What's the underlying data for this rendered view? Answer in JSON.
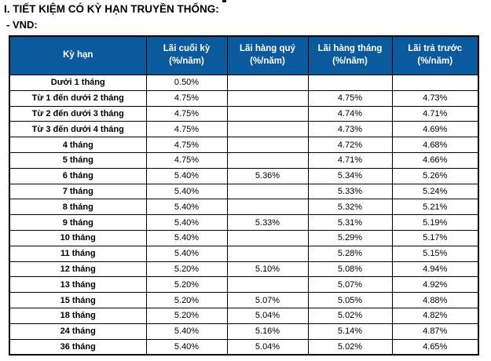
{
  "page": {
    "section_title": "I. TIẾT KIỆM CÓ KỲ HẠN TRUYỀN THỐNG:",
    "currency_label": "- VND:"
  },
  "colors": {
    "header_bg": "#0b5a9e",
    "header_text": "#ffffff",
    "border": "#000000",
    "body_text": "#000000"
  },
  "table": {
    "columns": [
      {
        "label": "Kỳ hạn",
        "sub": ""
      },
      {
        "label": "Lãi cuối kỳ",
        "sub": "(%/năm)"
      },
      {
        "label": "Lãi hàng quý",
        "sub": "(%/năm)"
      },
      {
        "label": "Lãi hàng tháng",
        "sub": "(%/năm)"
      },
      {
        "label": "Lãi trả trước",
        "sub": "(%/năm)"
      }
    ],
    "rows": [
      {
        "term": "Dưới 1 tháng",
        "end": "0.50%",
        "quarterly": "",
        "monthly": "",
        "prepaid": ""
      },
      {
        "term": "Từ 1 đến dưới 2 tháng",
        "end": "4.75%",
        "quarterly": "",
        "monthly": "4.75%",
        "prepaid": "4.73%"
      },
      {
        "term": "Từ 2 đến dưới 3 tháng",
        "end": "4.75%",
        "quarterly": "",
        "monthly": "4.74%",
        "prepaid": "4.71%"
      },
      {
        "term": "Từ 3 đến dưới 4 tháng",
        "end": "4.75%",
        "quarterly": "",
        "monthly": "4.73%",
        "prepaid": "4.69%"
      },
      {
        "term": "4 tháng",
        "end": "4.75%",
        "quarterly": "",
        "monthly": "4.72%",
        "prepaid": "4.68%"
      },
      {
        "term": "5 tháng",
        "end": "4.75%",
        "quarterly": "",
        "monthly": "4.71%",
        "prepaid": "4.66%"
      },
      {
        "term": "6 tháng",
        "end": "5.40%",
        "quarterly": "5.36%",
        "monthly": "5.34%",
        "prepaid": "5.26%"
      },
      {
        "term": "7 tháng",
        "end": "5.40%",
        "quarterly": "",
        "monthly": "5.33%",
        "prepaid": "5.24%"
      },
      {
        "term": "8 tháng",
        "end": "5.40%",
        "quarterly": "",
        "monthly": "5.32%",
        "prepaid": "5.21%"
      },
      {
        "term": "9 tháng",
        "end": "5.40%",
        "quarterly": "5.33%",
        "monthly": "5.31%",
        "prepaid": "5.19%"
      },
      {
        "term": "10 tháng",
        "end": "5.40%",
        "quarterly": "",
        "monthly": "5.29%",
        "prepaid": "5.17%"
      },
      {
        "term": "11 tháng",
        "end": "5.40%",
        "quarterly": "",
        "monthly": "5.28%",
        "prepaid": "5.15%"
      },
      {
        "term": "12 tháng",
        "end": "5.20%",
        "quarterly": "5.10%",
        "monthly": "5.08%",
        "prepaid": "4.94%"
      },
      {
        "term": "13 tháng",
        "end": "5.20%",
        "quarterly": "",
        "monthly": "5.07%",
        "prepaid": "4.92%"
      },
      {
        "term": "15 tháng",
        "end": "5.20%",
        "quarterly": "5.07%",
        "monthly": "5.05%",
        "prepaid": "4.88%"
      },
      {
        "term": "18 tháng",
        "end": "5.20%",
        "quarterly": "5.04%",
        "monthly": "5.02%",
        "prepaid": "4.82%"
      },
      {
        "term": "24 tháng",
        "end": "5.40%",
        "quarterly": "5.16%",
        "monthly": "5.14%",
        "prepaid": "4.87%"
      },
      {
        "term": "36 tháng",
        "end": "5.40%",
        "quarterly": "5.04%",
        "monthly": "5.02%",
        "prepaid": "4.65%"
      }
    ]
  }
}
